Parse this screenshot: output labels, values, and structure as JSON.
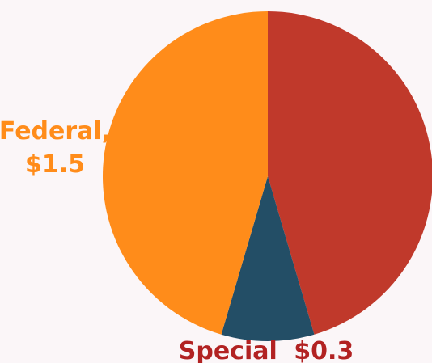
{
  "chart_data": {
    "type": "pie",
    "title": "",
    "slices": [
      {
        "key": "unlabeled",
        "label": "",
        "value_label": "",
        "value": 1.5,
        "color": "#c0392b",
        "label_color": ""
      },
      {
        "key": "special",
        "label": "Special",
        "value_label": "$0.3",
        "value": 0.3,
        "color": "#234e66",
        "label_color": "#b22222"
      },
      {
        "key": "federal",
        "label": "Federal,",
        "value_label": "$1.5",
        "value": 1.5,
        "color": "#ff8c1a",
        "label_color": "#ff8c1a"
      }
    ],
    "start_angle_deg": 0,
    "direction": "clockwise",
    "legend": "none"
  }
}
